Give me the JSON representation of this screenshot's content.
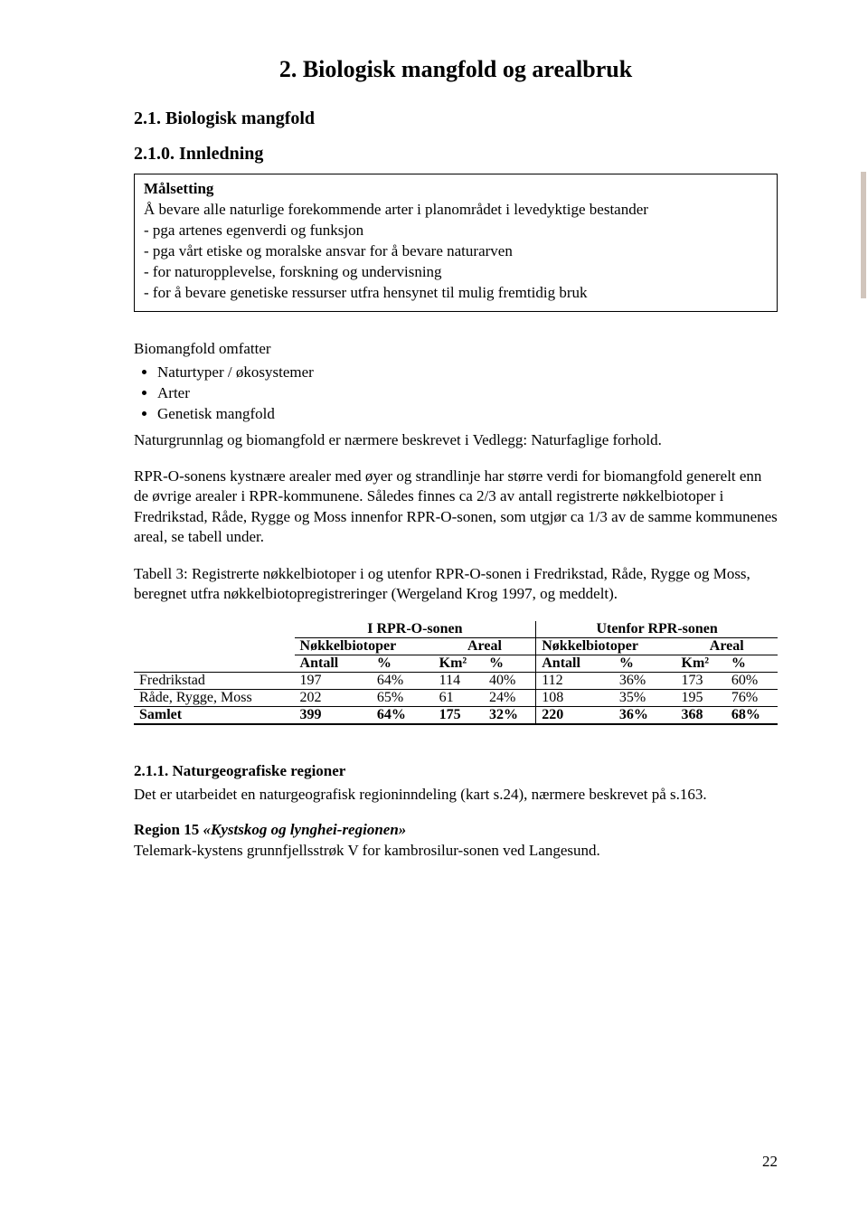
{
  "title": "2. Biologisk mangfold og arealbruk",
  "h2_1": "2.1. Biologisk mangfold",
  "h3_1": "2.1.0. Innledning",
  "box": {
    "title": "Målsetting",
    "l1": "Å bevare alle naturlige forekommende arter i planområdet i levedyktige bestander",
    "l2": "- pga artenes egenverdi og funksjon",
    "l3": "- pga vårt etiske og moralske ansvar for å bevare naturarven",
    "l4": "- for naturopplevelse, forskning og undervisning",
    "l5": "- for å bevare genetiske ressurser utfra hensynet til mulig fremtidig bruk"
  },
  "p_biom": "Biomangfold omfatter",
  "bullets": {
    "b1": "Naturtyper / økosystemer",
    "b2": "Arter",
    "b3": "Genetisk mangfold"
  },
  "p_natur": "Naturgrunnlag og biomangfold er nærmere beskrevet i Vedlegg: Naturfaglige forhold.",
  "p_rpr": "RPR-O-sonens kystnære arealer med øyer og strandlinje har større verdi for biomangfold generelt enn de øvrige arealer i RPR-kommunene. Således finnes ca 2/3 av antall registrerte nøkkelbiotoper i Fredrikstad, Råde, Rygge og Moss innenfor RPR-O-sonen, som utgjør ca 1/3 av de samme kommunenes areal, se tabell under.",
  "p_tab3": "Tabell 3: Registrerte nøkkelbiotoper i og utenfor RPR-O-sonen i Fredrikstad, Råde, Rygge og Moss, beregnet utfra nøkkelbiotopregistreringer (Wergeland Krog 1997, og meddelt).",
  "table": {
    "inside": "I RPR-O-sonen",
    "outside": "Utenfor RPR-sonen",
    "grp_biotop": "Nøkkelbiotoper",
    "grp_areal": "Areal",
    "col_antall": "Antall",
    "col_pct": "%",
    "col_km2": "Km²",
    "rows": [
      {
        "name": "Fredrikstad",
        "a1": "197",
        "p1": "64%",
        "k1": "114",
        "kp1": "40%",
        "a2": "112",
        "p2": "36%",
        "k2": "173",
        "kp2": "60%"
      },
      {
        "name": "Råde, Rygge, Moss",
        "a1": "202",
        "p1": "65%",
        "k1": "61",
        "kp1": "24%",
        "a2": "108",
        "p2": "35%",
        "k2": "195",
        "kp2": "76%"
      }
    ],
    "total": {
      "name": "Samlet",
      "a1": "399",
      "p1": "64%",
      "k1": "175",
      "kp1": "32%",
      "a2": "220",
      "p2": "36%",
      "k2": "368",
      "kp2": "68%"
    }
  },
  "h3_2": "2.1.1. Naturgeografiske regioner",
  "p_h32": "Det er utarbeidet en naturgeografisk regioninndeling (kart s.24), nærmere beskrevet på s.163.",
  "region15_pre": "Region 15 ",
  "region15_ital": "«Kystskog og lynghei-regionen»",
  "region15_body": "Telemark-kystens grunnfjellsstrøk V for kambrosilur-sonen ved Langesund.",
  "page_num": "22"
}
